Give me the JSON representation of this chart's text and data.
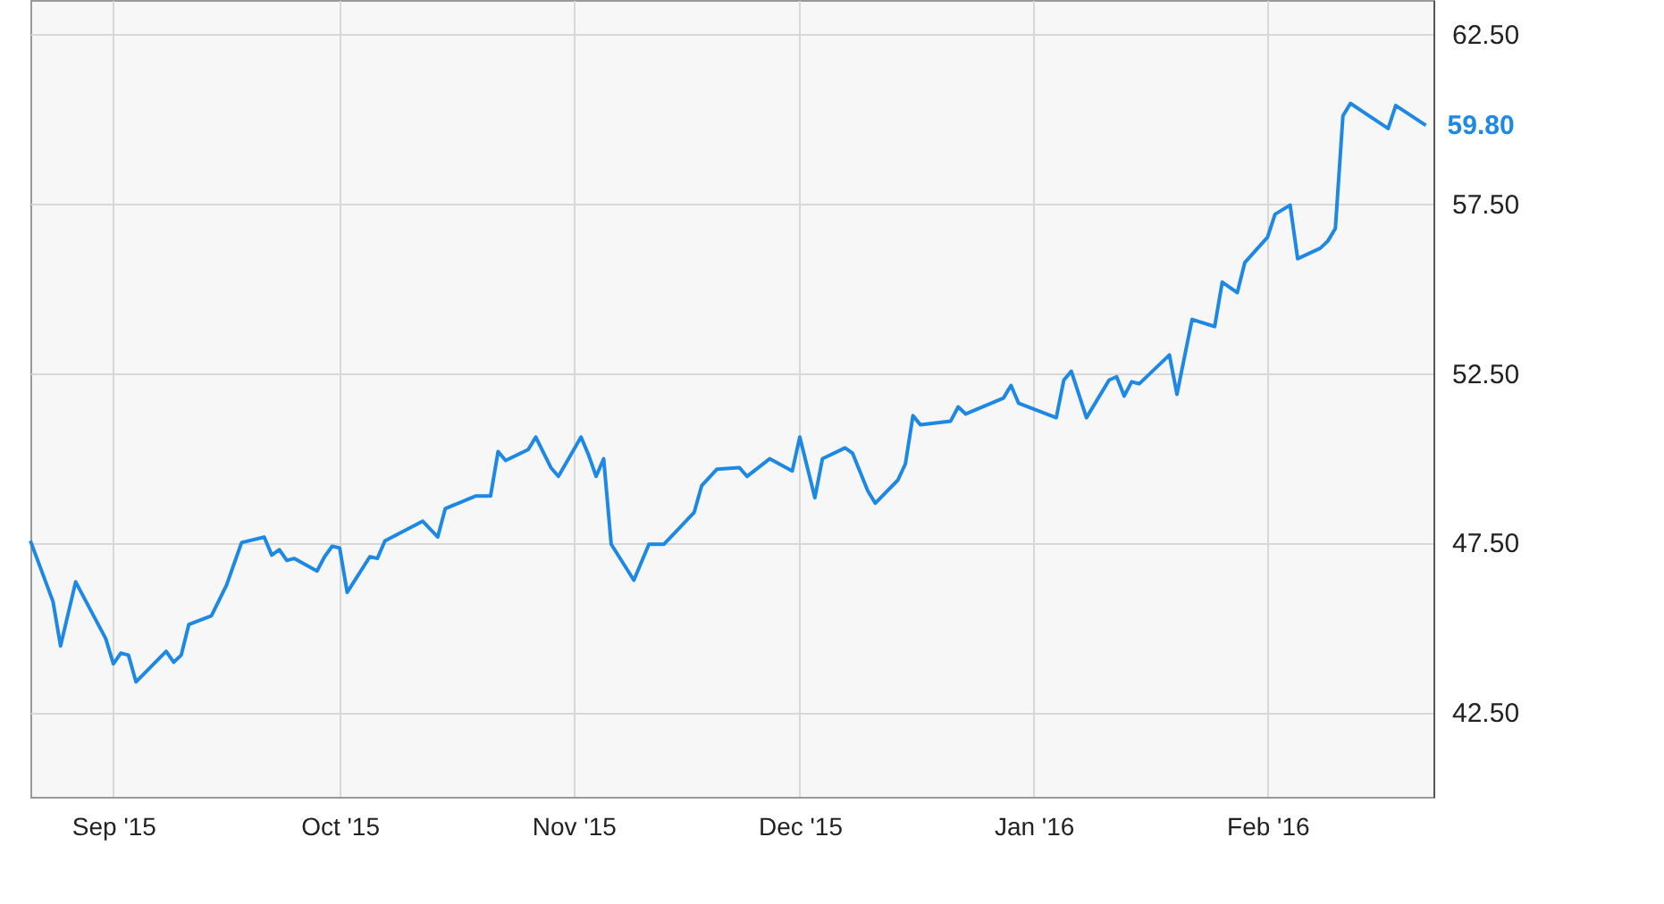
{
  "chart_data": {
    "type": "line",
    "x": [
      "2015-08-21",
      "2015-08-24",
      "2015-08-25",
      "2015-08-27",
      "2015-08-31",
      "2015-09-01",
      "2015-09-02",
      "2015-09-03",
      "2015-09-04",
      "2015-09-08",
      "2015-09-09",
      "2015-09-10",
      "2015-09-11",
      "2015-09-14",
      "2015-09-16",
      "2015-09-18",
      "2015-09-21",
      "2015-09-22",
      "2015-09-23",
      "2015-09-24",
      "2015-09-25",
      "2015-09-28",
      "2015-09-29",
      "2015-09-30",
      "2015-10-01",
      "2015-10-02",
      "2015-10-05",
      "2015-10-06",
      "2015-10-07",
      "2015-10-12",
      "2015-10-14",
      "2015-10-15",
      "2015-10-19",
      "2015-10-21",
      "2015-10-22",
      "2015-10-23",
      "2015-10-26",
      "2015-10-27",
      "2015-10-29",
      "2015-10-30",
      "2015-11-02",
      "2015-11-03",
      "2015-11-04",
      "2015-11-05",
      "2015-11-06",
      "2015-11-09",
      "2015-11-11",
      "2015-11-13",
      "2015-11-17",
      "2015-11-18",
      "2015-11-20",
      "2015-11-23",
      "2015-11-24",
      "2015-11-27",
      "2015-11-30",
      "2015-12-01",
      "2015-12-03",
      "2015-12-04",
      "2015-12-07",
      "2015-12-08",
      "2015-12-10",
      "2015-12-11",
      "2015-12-14",
      "2015-12-15",
      "2015-12-16",
      "2015-12-17",
      "2015-12-21",
      "2015-12-22",
      "2015-12-23",
      "2015-12-28",
      "2015-12-29",
      "2015-12-30",
      "2016-01-04",
      "2016-01-05",
      "2016-01-06",
      "2016-01-08",
      "2016-01-11",
      "2016-01-12",
      "2016-01-13",
      "2016-01-14",
      "2016-01-15",
      "2016-01-19",
      "2016-01-20",
      "2016-01-22",
      "2016-01-25",
      "2016-01-26",
      "2016-01-28",
      "2016-01-29",
      "2016-02-01",
      "2016-02-02",
      "2016-02-04",
      "2016-02-05",
      "2016-02-08",
      "2016-02-09",
      "2016-02-10",
      "2016-02-11",
      "2016-02-12",
      "2016-02-17",
      "2016-02-18",
      "2016-02-22"
    ],
    "series": [
      {
        "color": "#1e88e5",
        "values": [
          47.55,
          45.76,
          44.45,
          46.34,
          44.66,
          43.92,
          44.24,
          44.18,
          43.39,
          44.29,
          43.97,
          44.18,
          45.08,
          45.34,
          46.24,
          47.5,
          47.66,
          47.13,
          47.29,
          46.97,
          47.03,
          46.66,
          47.08,
          47.39,
          47.34,
          46.03,
          47.08,
          47.03,
          47.55,
          48.13,
          47.66,
          48.5,
          48.87,
          48.87,
          50.18,
          49.92,
          50.24,
          50.61,
          49.71,
          49.45,
          50.61,
          50.08,
          49.45,
          49.97,
          47.45,
          46.39,
          47.45,
          47.45,
          48.39,
          49.18,
          49.66,
          49.71,
          49.45,
          49.97,
          49.61,
          50.61,
          48.82,
          49.97,
          50.29,
          50.13,
          49.03,
          48.66,
          49.34,
          49.82,
          51.24,
          50.97,
          51.08,
          51.5,
          51.29,
          51.76,
          52.13,
          51.61,
          51.18,
          52.29,
          52.55,
          51.18,
          52.29,
          52.39,
          51.82,
          52.24,
          52.18,
          53.03,
          51.87,
          54.08,
          53.87,
          55.18,
          54.87,
          55.76,
          56.5,
          57.18,
          57.45,
          55.87,
          56.18,
          56.39,
          56.76,
          60.08,
          60.45,
          59.71,
          60.39,
          59.8
        ]
      }
    ],
    "xlim": [
      "2015-08-21",
      "2016-02-23"
    ],
    "xticks": [
      {
        "value": "2015-09-01",
        "label": "Sep '15"
      },
      {
        "value": "2015-10-01",
        "label": "Oct '15"
      },
      {
        "value": "2015-11-01",
        "label": "Nov '15"
      },
      {
        "value": "2015-12-01",
        "label": "Dec '15"
      },
      {
        "value": "2016-01-01",
        "label": "Jan '16"
      },
      {
        "value": "2016-02-01",
        "label": "Feb '16"
      }
    ],
    "ylim": [
      40,
      63.5
    ],
    "yticks": [
      {
        "value": 42.5,
        "label": "42.50"
      },
      {
        "value": 47.5,
        "label": "47.50"
      },
      {
        "value": 52.5,
        "label": "52.50"
      },
      {
        "value": 57.5,
        "label": "57.50"
      },
      {
        "value": 62.5,
        "label": "62.50"
      }
    ],
    "annotations": [
      {
        "text": "59.80",
        "x": "2016-02-22",
        "y": 59.8
      }
    ],
    "grid": true,
    "line_style": "solid"
  }
}
